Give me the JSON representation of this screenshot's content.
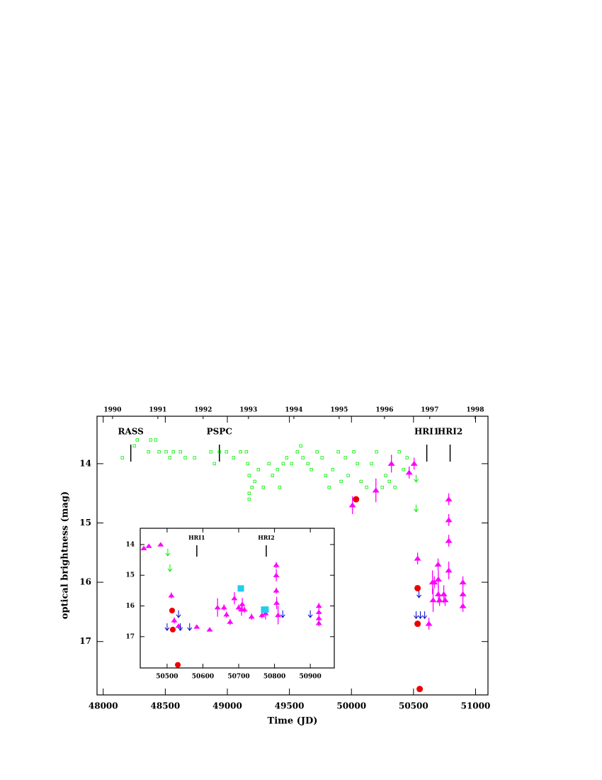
{
  "chart_data": [
    {
      "type": "scatter",
      "xlabel": "Time (JD)",
      "ylabel": "optical brightness (mag)",
      "xlim": [
        47950,
        51100
      ],
      "ylim": [
        17.9,
        13.2
      ],
      "xticks": [
        48000,
        48500,
        49000,
        49500,
        50000,
        50500,
        51000
      ],
      "yticks": [
        14,
        15,
        16,
        17
      ],
      "x2ticks": [
        {
          "value": 48075,
          "label": "1990"
        },
        {
          "value": 48440,
          "label": "1991"
        },
        {
          "value": 48805,
          "label": "1992"
        },
        {
          "value": 49170,
          "label": "1993"
        },
        {
          "value": 49536,
          "label": "1994"
        },
        {
          "value": 49901,
          "label": "1995"
        },
        {
          "value": 50266,
          "label": "1996"
        },
        {
          "value": 50631,
          "label": "1997"
        },
        {
          "value": 50997,
          "label": "1998"
        }
      ],
      "annotations": [
        {
          "text": "RASS",
          "x": 48222
        },
        {
          "text": "PSPC",
          "x": 48936
        },
        {
          "text": "HRI1",
          "x": 50607
        },
        {
          "text": "HRI2",
          "x": 50795
        }
      ],
      "series": [
        {
          "marker": "square",
          "color": "#00ee00",
          "x": [
            48154,
            48251,
            48274,
            48382,
            48422,
            48365,
            48450,
            48507,
            48565,
            48622,
            48536,
            48661,
            48736,
            48867,
            48896,
            48936,
            48993,
            49050,
            49107,
            49153,
            49164,
            49176,
            49176,
            49176,
            49198,
            49221,
            49250,
            49290,
            49335,
            49364,
            49404,
            49421,
            49450,
            49478,
            49518,
            49564,
            49592,
            49609,
            49649,
            49677,
            49723,
            49763,
            49792,
            49820,
            49849,
            49894,
            49917,
            49951,
            49974,
            50019,
            50048,
            50077,
            50122,
            50162,
            50202,
            50248,
            50276,
            50305,
            50350,
            50385,
            50419,
            50448
          ],
          "values": [
            13.9,
            13.7,
            13.6,
            13.6,
            13.6,
            13.8,
            13.8,
            13.8,
            13.8,
            13.8,
            13.9,
            13.9,
            13.9,
            13.8,
            14.0,
            13.8,
            13.8,
            13.9,
            13.8,
            13.8,
            14.0,
            14.2,
            14.5,
            14.6,
            14.4,
            14.3,
            14.1,
            14.4,
            14.0,
            14.2,
            14.1,
            14.4,
            14.0,
            13.9,
            14.0,
            13.8,
            13.7,
            13.9,
            14.0,
            14.1,
            13.8,
            13.9,
            14.2,
            14.4,
            14.1,
            13.8,
            14.3,
            13.9,
            14.2,
            13.8,
            14.0,
            14.3,
            14.4,
            14.0,
            13.8,
            14.4,
            14.2,
            14.3,
            14.4,
            13.8,
            14.1,
            13.9
          ]
        },
        {
          "marker": "arrow",
          "color": "#00ee00",
          "x": [
            50521,
            50521
          ],
          "values": [
            14.25,
            14.75
          ]
        },
        {
          "marker": "triangle",
          "color": "#ff00ff",
          "x": [
            50008,
            50197,
            50322,
            50465,
            50505,
            50533,
            50653,
            50668,
            50698,
            50700,
            50700,
            50710,
            50744,
            50755,
            50784,
            50784,
            50784,
            50784,
            50898,
            50898,
            50898,
            50624,
            50658
          ],
          "values": [
            14.7,
            14.45,
            14.0,
            14.15,
            14.0,
            15.6,
            16.0,
            16.0,
            15.7,
            16.2,
            15.95,
            16.3,
            16.2,
            16.3,
            14.6,
            14.95,
            15.3,
            15.8,
            16.0,
            16.2,
            16.4,
            16.7,
            16.3
          ],
          "errors": [
            0.15,
            0.2,
            0.15,
            0.1,
            0.1,
            0.1,
            0.2,
            0.1,
            0.1,
            0.15,
            0.15,
            0.1,
            0.15,
            0.1,
            0.1,
            0.1,
            0.1,
            0.15,
            0.1,
            0.1,
            0.1,
            0.1,
            0.2
          ]
        },
        {
          "marker": "circle",
          "color": "#ee0000",
          "x": [
            50037,
            50533,
            50533,
            50550
          ],
          "values": [
            14.6,
            16.1,
            16.7,
            17.8
          ]
        },
        {
          "marker": "arrow",
          "color": "#0000cc",
          "x": [
            50544,
            50521,
            50555,
            50590
          ],
          "values": [
            16.2,
            16.55,
            16.55,
            16.55
          ]
        }
      ]
    },
    {
      "type": "scatter",
      "xlim": [
        50425,
        50967
      ],
      "ylim": [
        18.02,
        13.47
      ],
      "xticks": [
        50500,
        50600,
        50700,
        50800,
        50900
      ],
      "yticks": [
        14,
        15,
        16,
        17
      ],
      "annotations": [
        {
          "text": "HRI1",
          "x": 50583
        },
        {
          "text": "HRI2",
          "x": 50777
        }
      ],
      "series": [
        {
          "marker": "arrow",
          "color": "#00ee00",
          "x": [
            50502,
            50508
          ],
          "values": [
            14.25,
            14.76
          ]
        },
        {
          "marker": "triangle",
          "color": "#ff00ff",
          "x": [
            50435,
            50449,
            50482,
            50512,
            50520,
            50532,
            50583,
            50619,
            50641,
            50659,
            50666,
            50676,
            50688,
            50700,
            50708,
            50710,
            50716,
            50736,
            50765,
            50775,
            50805,
            50805,
            50805,
            50806,
            50810,
            50924,
            50924,
            50924,
            50924
          ],
          "values": [
            14.12,
            14.05,
            14.0,
            15.66,
            16.47,
            16.65,
            16.68,
            16.77,
            16.05,
            16.05,
            16.28,
            16.52,
            15.75,
            16.05,
            16.12,
            15.94,
            16.12,
            16.35,
            16.3,
            16.24,
            14.67,
            15.0,
            15.5,
            15.9,
            16.3,
            16.0,
            16.2,
            16.4,
            16.56
          ],
          "errors": [
            0.05,
            0.05,
            0.05,
            0.1,
            0.1,
            0.05,
            0.05,
            0.05,
            0.3,
            0.1,
            0.1,
            0.1,
            0.2,
            0.1,
            0.2,
            0.2,
            0.1,
            0.1,
            0.1,
            0.2,
            0.1,
            0.2,
            0.1,
            0.2,
            0.3,
            0.1,
            0.1,
            0.1,
            0.1
          ]
        },
        {
          "marker": "circle",
          "color": "#ee0000",
          "x": [
            50514,
            50516,
            50530
          ],
          "values": [
            16.15,
            16.77,
            17.92
          ]
        },
        {
          "marker": "bigsquare",
          "color": "#22ccee",
          "x": [
            50706,
            50771,
            50775
          ],
          "values": [
            15.43,
            16.12,
            16.12
          ]
        },
        {
          "marker": "arrow",
          "color": "#0000cc",
          "x": [
            50500,
            50532,
            50537,
            50563,
            50823,
            50900
          ],
          "values": [
            16.68,
            16.26,
            16.68,
            16.68,
            16.26,
            16.26
          ]
        }
      ]
    }
  ]
}
